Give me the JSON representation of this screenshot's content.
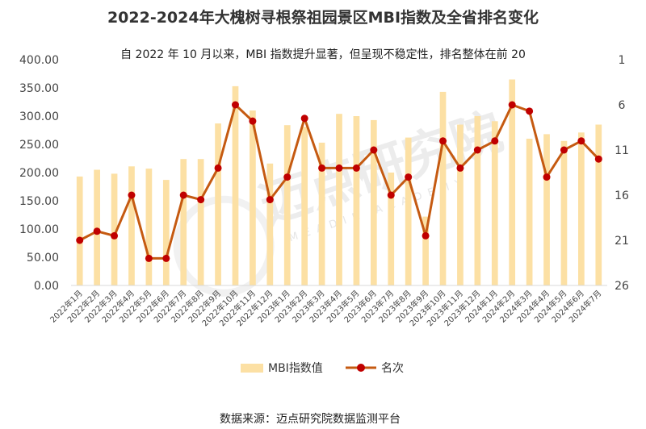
{
  "chart_data": {
    "type": "bar+line",
    "title": "2022-2024年大槐树寻根祭祖园景区MBI指数及全省排名变化",
    "subtitle": "自 2022 年 10 月以来，MBI 指数提升显著，但呈现不稳定性，排名整体在前 20",
    "categories": [
      "2022年1月",
      "2022年2月",
      "2022年3月",
      "2022年4月",
      "2022年5月",
      "2022年6月",
      "2022年7月",
      "2022年8月",
      "2022年9月",
      "2022年10月",
      "2022年11月",
      "2022年12月",
      "2023年1月",
      "2023年2月",
      "2023年3月",
      "2023年4月",
      "2023年5月",
      "2023年6月",
      "2023年7月",
      "2023年8月",
      "2023年9月",
      "2023年10月",
      "2023年11月",
      "2023年12月",
      "2024年1月",
      "2024年2月",
      "2024年3月",
      "2024年4月",
      "2024年5月",
      "2024年6月",
      "2024年7月"
    ],
    "series": [
      {
        "name": "MBI指数值",
        "type": "bar",
        "axis": "left",
        "color": "#FCE0A4",
        "values": [
          193,
          205,
          198,
          211,
          207,
          187,
          224,
          224,
          287,
          353,
          310,
          216,
          284,
          281,
          253,
          304,
          300,
          293,
          200,
          262,
          122,
          343,
          285,
          300,
          291,
          365,
          260,
          268,
          256,
          271,
          285
        ]
      },
      {
        "name": "名次",
        "type": "line",
        "axis": "right",
        "color": "#C55A11",
        "marker_color": "#C00000",
        "values": [
          21,
          20,
          20.5,
          16,
          23,
          23,
          16,
          16.5,
          13,
          6,
          7.8,
          16.5,
          14,
          7.5,
          13,
          13,
          13,
          11,
          16,
          14,
          20.5,
          10,
          13,
          11,
          10,
          6,
          6.7,
          14,
          11,
          10,
          12
        ]
      }
    ],
    "y_left": {
      "ylim": [
        0,
        400
      ],
      "ticks": [
        "0.00",
        "50.00",
        "100.00",
        "150.00",
        "200.00",
        "250.00",
        "300.00",
        "350.00",
        "400.00"
      ]
    },
    "y_right": {
      "ylim": [
        1,
        26
      ],
      "inverted": true,
      "ticks": [
        "1",
        "6",
        "11",
        "16",
        "21",
        "26"
      ]
    },
    "grid": false,
    "legend_position": "bottom",
    "source": "数据来源：迈点研究院数据监测平台",
    "watermark": {
      "text": "迈点研究院",
      "subtext": "MEADIN ACADEMY"
    }
  }
}
